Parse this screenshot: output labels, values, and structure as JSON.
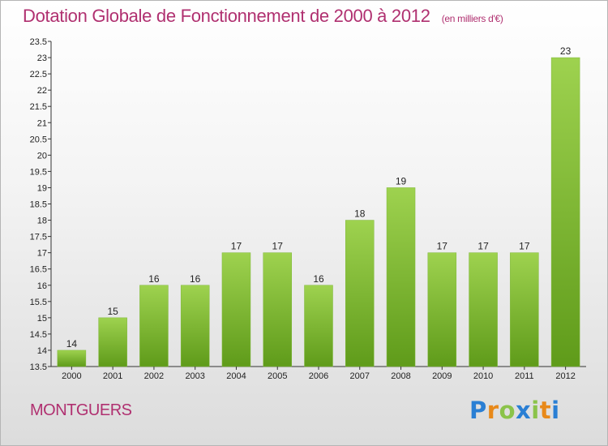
{
  "header": {
    "title": "Dotation Globale de Fonctionnement de 2000 à 2012",
    "subtitle": "(en milliers d'€)"
  },
  "commune": "MONTGUERS",
  "logo": {
    "letters": [
      "P",
      "r",
      "o",
      "x",
      "i",
      "t",
      "i"
    ]
  },
  "colors": {
    "title": "#b03070",
    "bar_top": "#9ed24f",
    "bar_bottom": "#5f9b1a"
  },
  "chart_data": {
    "type": "bar",
    "categories": [
      "2000",
      "2001",
      "2002",
      "2003",
      "2004",
      "2005",
      "2006",
      "2007",
      "2008",
      "2009",
      "2010",
      "2011",
      "2012"
    ],
    "values": [
      14,
      15,
      16,
      16,
      17,
      17,
      16,
      18,
      19,
      17,
      17,
      17,
      23
    ],
    "data_labels": [
      "14",
      "15",
      "16",
      "16",
      "17",
      "17",
      "16",
      "18",
      "19",
      "17",
      "17",
      "17",
      "23"
    ],
    "yticks": [
      "13.5",
      "14",
      "14.5",
      "15",
      "15.5",
      "16",
      "16.5",
      "17",
      "17.5",
      "18",
      "18.5",
      "19",
      "19.5",
      "20",
      "20.5",
      "21",
      "21.5",
      "22",
      "22.5",
      "23",
      "23.5"
    ],
    "ylim": [
      13.5,
      23.5
    ],
    "grid": false
  }
}
